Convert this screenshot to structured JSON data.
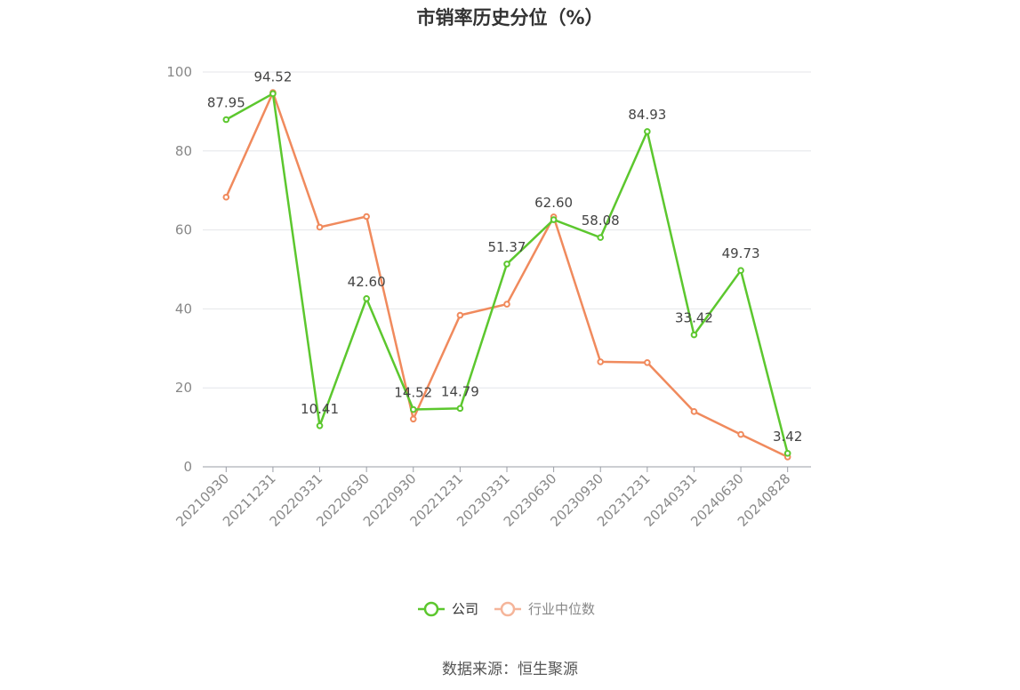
{
  "title": "市销率历史分位（%）",
  "source": "数据来源：恒生聚源",
  "chart_data": {
    "type": "line",
    "title": "市销率历史分位（%）",
    "xlabel": "",
    "ylabel": "",
    "ylim": [
      0,
      100
    ],
    "yticks": [
      "0",
      "20",
      "40",
      "60",
      "80",
      "100"
    ],
    "categories": [
      "20210930",
      "20211231",
      "20220331",
      "20220630",
      "20220930",
      "20221231",
      "20230331",
      "20230630",
      "20230930",
      "20231231",
      "20240331",
      "20240630",
      "20240828"
    ],
    "series": [
      {
        "name": "公司",
        "color": "#5cc72e",
        "values": [
          87.95,
          94.52,
          10.41,
          42.6,
          14.52,
          14.79,
          51.37,
          62.6,
          58.08,
          84.93,
          33.42,
          49.73,
          3.42
        ],
        "labels": [
          "87.95",
          "94.52",
          "10.41",
          "42.60",
          "14.52",
          "14.79",
          "51.37",
          "62.60",
          "58.08",
          "84.93",
          "33.42",
          "49.73",
          "3.42"
        ]
      },
      {
        "name": "行业中位数",
        "color": "#f08a5d",
        "values": [
          68.3,
          94.8,
          60.7,
          63.4,
          12.1,
          38.4,
          41.2,
          63.3,
          26.6,
          26.4,
          14.0,
          8.2,
          2.5
        ]
      }
    ],
    "grid": true,
    "legend": "bottom-center"
  }
}
